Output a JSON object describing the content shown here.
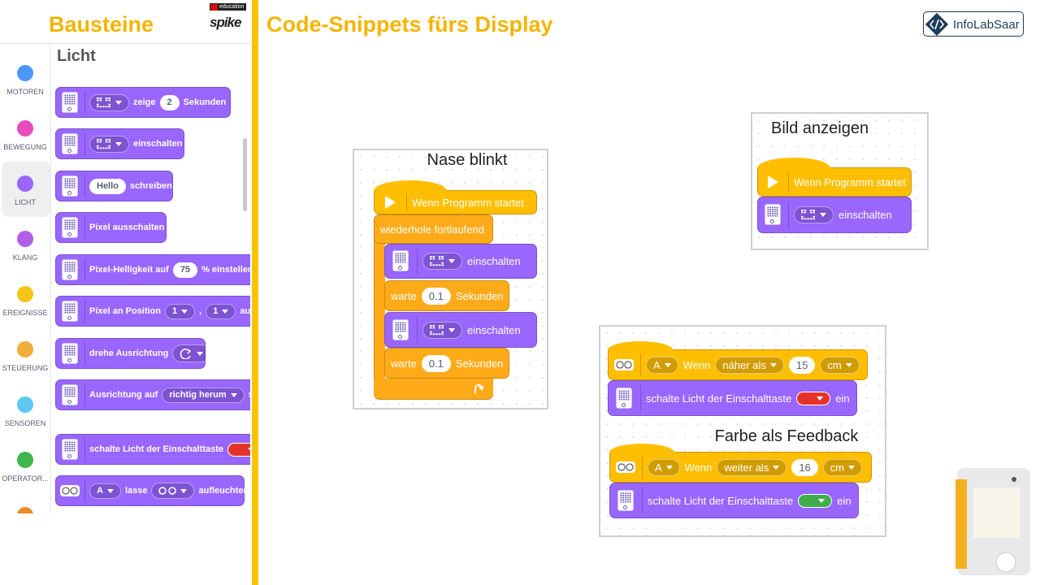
{
  "header": {
    "palette_title": "Bausteine",
    "brand_top": "education",
    "brand": "spike",
    "title": "Code-Snippets fürs Display",
    "logo": "InfoLabSaar"
  },
  "categories": [
    {
      "label": "MOTOREN",
      "color": "#4c97ff"
    },
    {
      "label": "BEWEGUNG",
      "color": "#e64cbd"
    },
    {
      "label": "LICHT",
      "color": "#9966ff",
      "selected": true
    },
    {
      "label": "KLANG",
      "color": "#b35ee6"
    },
    {
      "label": "EREIGNISSE",
      "color": "#f5c518"
    },
    {
      "label": "STEUERUNG",
      "color": "#f2ae3a"
    },
    {
      "label": "SENSOREN",
      "color": "#5cc8f0"
    },
    {
      "label": "OPERATOR...",
      "color": "#3fb54a"
    }
  ],
  "palette": {
    "heading": "Licht",
    "blocks": [
      {
        "color": "#9966ff",
        "icon": "hub",
        "parts": [
          {
            "image_menu": "matrix"
          },
          {
            "text": "zeige"
          },
          {
            "field": "2"
          },
          {
            "text": "Sekunden"
          }
        ]
      },
      {
        "color": "#9966ff",
        "icon": "hub",
        "parts": [
          {
            "image_menu": "matrix"
          },
          {
            "text": "einschalten"
          }
        ]
      },
      {
        "color": "#9966ff",
        "icon": "hub",
        "parts": [
          {
            "field": "Hello"
          },
          {
            "text": "schreiben"
          }
        ]
      },
      {
        "color": "#9966ff",
        "icon": "hub",
        "parts": [
          {
            "text": "Pixel ausschalten"
          }
        ]
      },
      {
        "color": "#9966ff",
        "icon": "hub",
        "parts": [
          {
            "text": "Pixel-Helligkeit auf"
          },
          {
            "field": "75"
          },
          {
            "text": "% einstellen"
          }
        ]
      },
      {
        "color": "#9966ff",
        "icon": "hub",
        "parts": [
          {
            "text": "Pixel an Position"
          },
          {
            "menu": "1"
          },
          {
            "text": ","
          },
          {
            "menu": "1"
          },
          {
            "text": "auf"
          }
        ]
      },
      {
        "color": "#9966ff",
        "icon": "hub",
        "parts": [
          {
            "text": "drehe Ausrichtung"
          },
          {
            "image_menu": "rotate"
          }
        ]
      },
      {
        "color": "#9966ff",
        "icon": "hub",
        "parts": [
          {
            "text": "Ausrichtung auf"
          },
          {
            "menu": "richtig herum"
          },
          {
            "text": "se"
          }
        ]
      },
      {
        "color": "#9966ff",
        "icon": "hub",
        "parts": [
          {
            "text": "schalte Licht der Einschalttaste"
          },
          {
            "color_menu": "#e6332a"
          }
        ]
      },
      {
        "color": "#9966ff",
        "icon": "eyes",
        "parts": [
          {
            "menu": "A"
          },
          {
            "text": "lasse"
          },
          {
            "image_menu": "eyes"
          },
          {
            "text": "aufleuchten"
          }
        ]
      }
    ]
  },
  "snippets": [
    {
      "title": "Nase blinkt",
      "blocks": [
        {
          "color": "#ffbf00",
          "icon": "play",
          "parts": [
            {
              "text": "Wenn Programm startet"
            }
          ]
        },
        {
          "color": "#ffab19",
          "parts": [
            {
              "text": "wiederhole fortlaufend"
            }
          ]
        },
        {
          "color": "#9966ff",
          "icon": "hub",
          "parts": [
            {
              "image_menu": "matrix"
            },
            {
              "text": "einschalten"
            }
          ]
        },
        {
          "color": "#ffab19",
          "parts": [
            {
              "text": "warte"
            },
            {
              "field": "0.1"
            },
            {
              "text": "Sekunden"
            }
          ]
        },
        {
          "color": "#9966ff",
          "icon": "hub",
          "parts": [
            {
              "image_menu": "matrix"
            },
            {
              "text": "einschalten"
            }
          ]
        },
        {
          "color": "#ffab19",
          "parts": [
            {
              "text": "warte"
            },
            {
              "field": "0.1"
            },
            {
              "text": "Sekunden"
            }
          ]
        }
      ]
    },
    {
      "title": "Bild anzeigen",
      "blocks": [
        {
          "color": "#ffbf00",
          "icon": "play",
          "parts": [
            {
              "text": "Wenn Programm startet"
            }
          ]
        },
        {
          "color": "#9966ff",
          "icon": "hub",
          "parts": [
            {
              "image_menu": "matrix"
            },
            {
              "text": "einschalten"
            }
          ]
        }
      ]
    },
    {
      "title": "Farbe als Feedback",
      "blocks": [
        {
          "color": "#ffbf00",
          "icon": "distance",
          "parts": [
            {
              "menu": "A"
            },
            {
              "text": "Wenn"
            },
            {
              "menu": "näher als"
            },
            {
              "field": "15"
            },
            {
              "menu": "cm"
            }
          ]
        },
        {
          "color": "#9966ff",
          "icon": "hub",
          "parts": [
            {
              "text": "schalte Licht der Einschalttaste"
            },
            {
              "color_menu": "#e6332a"
            },
            {
              "text": "ein"
            }
          ]
        },
        {
          "color": "#ffbf00",
          "icon": "distance",
          "parts": [
            {
              "menu": "A"
            },
            {
              "text": "Wenn"
            },
            {
              "menu": "weiter als"
            },
            {
              "field": "16"
            },
            {
              "menu": "cm"
            }
          ]
        },
        {
          "color": "#9966ff",
          "icon": "hub",
          "parts": [
            {
              "text": "schalte Licht der Einschalttaste"
            },
            {
              "color_menu": "#3fae49"
            },
            {
              "text": "ein"
            }
          ]
        }
      ]
    }
  ]
}
